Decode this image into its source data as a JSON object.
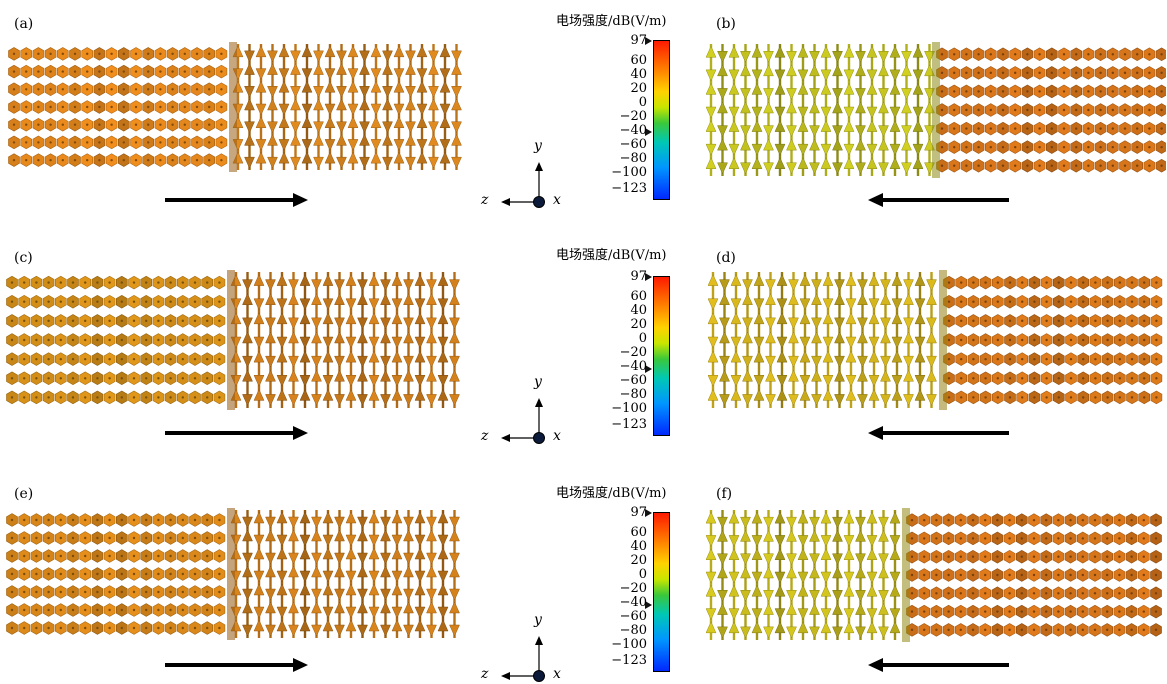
{
  "panels": [
    {
      "label": "(a)",
      "wave": "right",
      "left_color": "#e8891c",
      "right_color": "#d9861e"
    },
    {
      "label": "(b)",
      "wave": "left",
      "left_color": "#c9c71f",
      "right_color": "#d9761a"
    },
    {
      "label": "(c)",
      "wave": "right",
      "left_color": "#d99219",
      "right_color": "#d27f1b"
    },
    {
      "label": "(d)",
      "wave": "left",
      "left_color": "#d8b71c",
      "right_color": "#d9781a"
    },
    {
      "label": "(e)",
      "wave": "right",
      "left_color": "#de8a1a",
      "right_color": "#d2801b"
    },
    {
      "label": "(f)",
      "wave": "left",
      "left_color": "#d0c21d",
      "right_color": "#d9761a"
    }
  ],
  "colorbar": {
    "title": "电场强度/dB(V/m)",
    "ticks": [
      "97",
      "60",
      "40",
      "20",
      "0",
      "−20",
      "−40",
      "−60",
      "−80",
      "−100",
      "−123"
    ],
    "max": 97,
    "min": -123
  },
  "axes": {
    "y": "y",
    "z": "z",
    "x": "x"
  }
}
